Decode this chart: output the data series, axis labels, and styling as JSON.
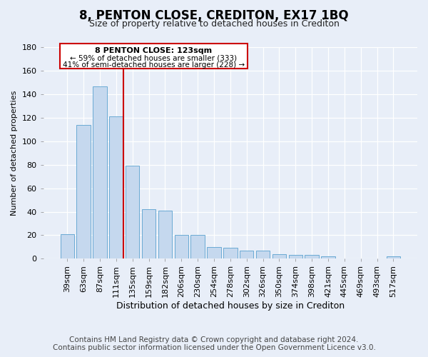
{
  "title": "8, PENTON CLOSE, CREDITON, EX17 1BQ",
  "subtitle": "Size of property relative to detached houses in Crediton",
  "xlabel": "Distribution of detached houses by size in Crediton",
  "ylabel": "Number of detached properties",
  "categories": [
    "39sqm",
    "63sqm",
    "87sqm",
    "111sqm",
    "135sqm",
    "159sqm",
    "182sqm",
    "206sqm",
    "230sqm",
    "254sqm",
    "278sqm",
    "302sqm",
    "326sqm",
    "350sqm",
    "374sqm",
    "398sqm",
    "421sqm",
    "445sqm",
    "469sqm",
    "493sqm",
    "517sqm"
  ],
  "values": [
    21,
    114,
    147,
    121,
    79,
    42,
    41,
    20,
    20,
    10,
    9,
    7,
    7,
    4,
    3,
    3,
    2,
    0,
    0,
    0,
    2
  ],
  "bar_color": "#c5d8ee",
  "bar_edge_color": "#6aaad4",
  "red_line_index": 3,
  "ylim": [
    0,
    180
  ],
  "yticks": [
    0,
    20,
    40,
    60,
    80,
    100,
    120,
    140,
    160,
    180
  ],
  "annotation_title": "8 PENTON CLOSE: 123sqm",
  "annotation_line1": "← 59% of detached houses are smaller (333)",
  "annotation_line2": "41% of semi-detached houses are larger (228) →",
  "annotation_box_color": "#ffffff",
  "annotation_box_edge": "#cc0000",
  "footer_line1": "Contains HM Land Registry data © Crown copyright and database right 2024.",
  "footer_line2": "Contains public sector information licensed under the Open Government Licence v3.0.",
  "background_color": "#e8eef8",
  "plot_bg_color": "#e8eef8",
  "grid_color": "#ffffff",
  "title_fontsize": 12,
  "subtitle_fontsize": 9,
  "xlabel_fontsize": 9,
  "ylabel_fontsize": 8,
  "tick_fontsize": 8,
  "footer_fontsize": 7.5
}
